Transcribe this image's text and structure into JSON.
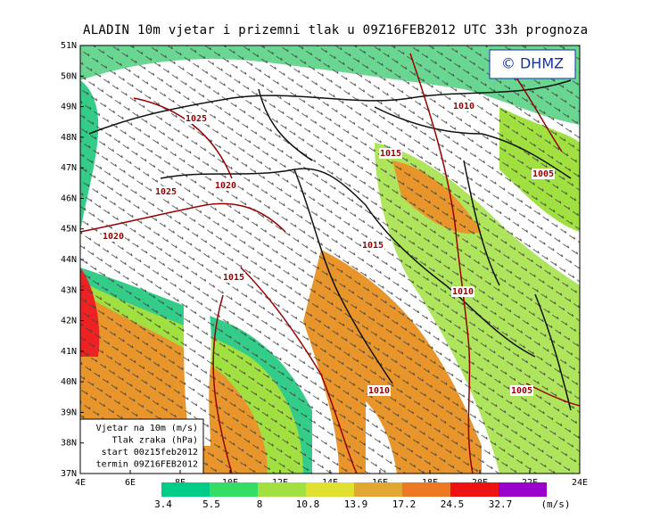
{
  "header": {
    "title": "ALADIN  10m  vjetar i prizemni tlak u 09Z16FEB2012 UTC 33h prognoza"
  },
  "logo": "© DHMZ",
  "lat_labels": [
    "51N",
    "50N",
    "49N",
    "48N",
    "47N",
    "46N",
    "45N",
    "44N",
    "43N",
    "42N",
    "41N",
    "40N",
    "39N",
    "38N",
    "37N"
  ],
  "lon_labels": [
    "4E",
    "6E",
    "8E",
    "10E",
    "12E",
    "14E",
    "16E",
    "18E",
    "20E",
    "22E",
    "24E"
  ],
  "isobar_labels": [
    "1025",
    "1025",
    "1020",
    "1020",
    "1015",
    "1015",
    "1015",
    "1010",
    "1010",
    "1010",
    "1005",
    "1005"
  ],
  "info_box": [
    "Vjetar na 10m (m/s)",
    "Tlak zraka (hPa)",
    "start 00z15feb2012",
    "termin 09Z16FEB2012"
  ],
  "colorbar": {
    "colors": [
      "#00cc88",
      "#33dd66",
      "#a0e040",
      "#e0e030",
      "#e0a830",
      "#ee7722",
      "#ee1111",
      "#9900cc"
    ],
    "labels": [
      3.4,
      5.5,
      8,
      10.8,
      13.9,
      17.2,
      24.5,
      32.7
    ],
    "units": "(m/s)"
  }
}
